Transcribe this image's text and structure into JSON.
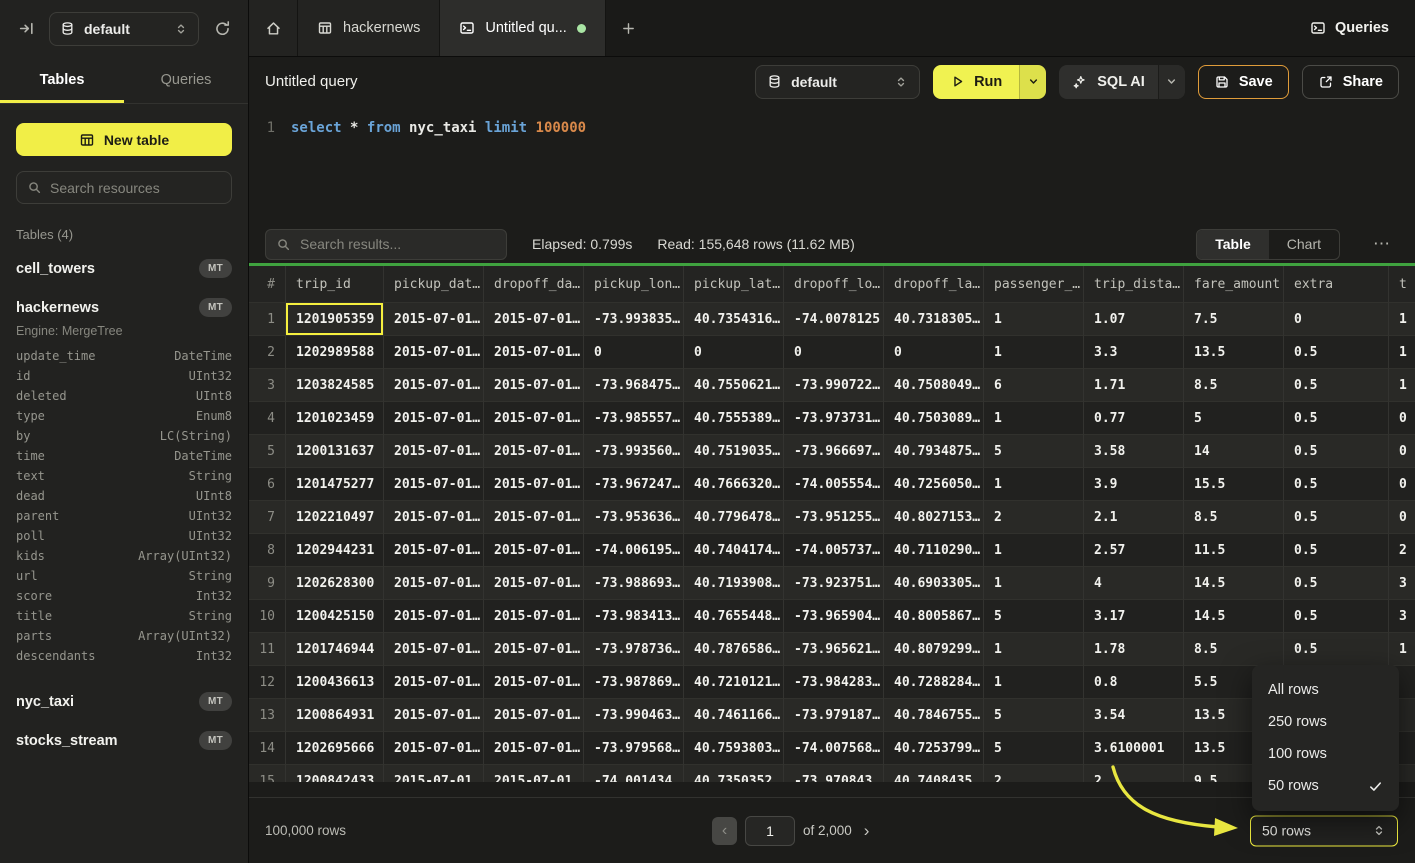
{
  "topbar": {
    "database": {
      "value": "default"
    },
    "tabs": [
      {
        "label": "hackernews"
      },
      {
        "label": "Untitled qu...",
        "active": true,
        "unsaved": true
      }
    ],
    "queries_label": "Queries"
  },
  "toolbar": {
    "title": "Untitled query",
    "database": {
      "value": "default"
    },
    "run_label": "Run",
    "sql_ai_label": "SQL AI",
    "save_label": "Save",
    "share_label": "Share"
  },
  "editor": {
    "line_number": "1",
    "tokens": [
      {
        "text": "select",
        "type": "keyword"
      },
      {
        "text": " ",
        "type": "plain"
      },
      {
        "text": "*",
        "type": "plain"
      },
      {
        "text": " ",
        "type": "plain"
      },
      {
        "text": "from",
        "type": "keyword"
      },
      {
        "text": " ",
        "type": "plain"
      },
      {
        "text": "nyc_taxi",
        "type": "identifier"
      },
      {
        "text": " ",
        "type": "plain"
      },
      {
        "text": "limit",
        "type": "keyword"
      },
      {
        "text": " ",
        "type": "plain"
      },
      {
        "text": "100000",
        "type": "number"
      }
    ]
  },
  "sidebar": {
    "tabs": [
      {
        "label": "Tables",
        "active": true
      },
      {
        "label": "Queries",
        "active": false
      }
    ],
    "new_table_label": "New table",
    "search_placeholder": "Search resources",
    "section_label": "Tables (4)",
    "tables": [
      {
        "name": "cell_towers",
        "badge": "MT"
      },
      {
        "name": "hackernews",
        "badge": "MT",
        "engine": "Engine: MergeTree",
        "columns": [
          {
            "name": "update_time",
            "type": "DateTime"
          },
          {
            "name": "id",
            "type": "UInt32"
          },
          {
            "name": "deleted",
            "type": "UInt8"
          },
          {
            "name": "type",
            "type": "Enum8"
          },
          {
            "name": "by",
            "type": "LC(String)"
          },
          {
            "name": "time",
            "type": "DateTime"
          },
          {
            "name": "text",
            "type": "String"
          },
          {
            "name": "dead",
            "type": "UInt8"
          },
          {
            "name": "parent",
            "type": "UInt32"
          },
          {
            "name": "poll",
            "type": "UInt32"
          },
          {
            "name": "kids",
            "type": "Array(UInt32)"
          },
          {
            "name": "url",
            "type": "String"
          },
          {
            "name": "score",
            "type": "Int32"
          },
          {
            "name": "title",
            "type": "String"
          },
          {
            "name": "parts",
            "type": "Array(UInt32)"
          },
          {
            "name": "descendants",
            "type": "Int32"
          }
        ]
      },
      {
        "name": "nyc_taxi",
        "badge": "MT"
      },
      {
        "name": "stocks_stream",
        "badge": "MT"
      }
    ]
  },
  "results": {
    "search_placeholder": "Search results...",
    "elapsed": "Elapsed: 0.799s",
    "read": "Read: 155,648 rows (11.62 MB)",
    "view_toggle": [
      "Table",
      "Chart"
    ],
    "more_label": "⋯"
  },
  "table": {
    "headers": [
      "#",
      "trip_id",
      "pickup_dat…",
      "dropoff_da…",
      "pickup_lon…",
      "pickup_lat…",
      "dropoff_lo…",
      "dropoff_la…",
      "passenger_…",
      "trip_dista…",
      "fare_amount",
      "extra",
      "t"
    ],
    "rows": [
      [
        "1",
        "1201905359",
        "2015-07-01…",
        "2015-07-01…",
        "-73.993835…",
        "40.7354316…",
        "-74.0078125",
        "40.7318305…",
        "1",
        "1.07",
        "7.5",
        "0",
        "1"
      ],
      [
        "2",
        "1202989588",
        "2015-07-01…",
        "2015-07-01…",
        "0",
        "0",
        "0",
        "0",
        "1",
        "3.3",
        "13.5",
        "0.5",
        "1"
      ],
      [
        "3",
        "1203824585",
        "2015-07-01…",
        "2015-07-01…",
        "-73.968475…",
        "40.7550621…",
        "-73.990722…",
        "40.7508049…",
        "6",
        "1.71",
        "8.5",
        "0.5",
        "1"
      ],
      [
        "4",
        "1201023459",
        "2015-07-01…",
        "2015-07-01…",
        "-73.985557…",
        "40.7555389…",
        "-73.973731…",
        "40.7503089…",
        "1",
        "0.77",
        "5",
        "0.5",
        "0"
      ],
      [
        "5",
        "1200131637",
        "2015-07-01…",
        "2015-07-01…",
        "-73.993560…",
        "40.7519035…",
        "-73.966697…",
        "40.7934875…",
        "5",
        "3.58",
        "14",
        "0.5",
        "0"
      ],
      [
        "6",
        "1201475277",
        "2015-07-01…",
        "2015-07-01…",
        "-73.967247…",
        "40.7666320…",
        "-74.005554…",
        "40.7256050…",
        "1",
        "3.9",
        "15.5",
        "0.5",
        "0"
      ],
      [
        "7",
        "1202210497",
        "2015-07-01…",
        "2015-07-01…",
        "-73.953636…",
        "40.7796478…",
        "-73.951255…",
        "40.8027153…",
        "2",
        "2.1",
        "8.5",
        "0.5",
        "0"
      ],
      [
        "8",
        "1202944231",
        "2015-07-01…",
        "2015-07-01…",
        "-74.006195…",
        "40.7404174…",
        "-74.005737…",
        "40.7110290…",
        "1",
        "2.57",
        "11.5",
        "0.5",
        "2"
      ],
      [
        "9",
        "1202628300",
        "2015-07-01…",
        "2015-07-01…",
        "-73.988693…",
        "40.7193908…",
        "-73.923751…",
        "40.6903305…",
        "1",
        "4",
        "14.5",
        "0.5",
        "3"
      ],
      [
        "10",
        "1200425150",
        "2015-07-01…",
        "2015-07-01…",
        "-73.983413…",
        "40.7655448…",
        "-73.965904…",
        "40.8005867…",
        "5",
        "3.17",
        "14.5",
        "0.5",
        "3"
      ],
      [
        "11",
        "1201746944",
        "2015-07-01…",
        "2015-07-01…",
        "-73.978736…",
        "40.7876586…",
        "-73.965621…",
        "40.8079299…",
        "1",
        "1.78",
        "8.5",
        "0.5",
        "1"
      ],
      [
        "12",
        "1200436613",
        "2015-07-01…",
        "2015-07-01…",
        "-73.987869…",
        "40.7210121…",
        "-73.984283…",
        "40.7288284…",
        "1",
        "0.8",
        "5.5",
        "",
        ""
      ],
      [
        "13",
        "1200864931",
        "2015-07-01…",
        "2015-07-01…",
        "-73.990463…",
        "40.7461166…",
        "-73.979187…",
        "40.7846755…",
        "5",
        "3.54",
        "13.5",
        "",
        ""
      ],
      [
        "14",
        "1202695666",
        "2015-07-01…",
        "2015-07-01…",
        "-73.979568…",
        "40.7593803…",
        "-74.007568…",
        "40.7253799…",
        "5",
        "3.6100001",
        "13.5",
        "",
        ""
      ],
      [
        "15",
        "1200842433",
        "2015-07-01…",
        "2015-07-01…",
        "-74.001434",
        "40.7350352",
        "-73.970843",
        "40.7408435",
        "2",
        "2",
        "9.5",
        "",
        ""
      ]
    ],
    "selected_cell": {
      "row": 0,
      "col": 1
    }
  },
  "footer": {
    "row_count": "100,000 rows",
    "prev_label": "‹",
    "page_value": "1",
    "of_label": "of 2,000",
    "next_label": "›",
    "page_size_value": "50 rows"
  },
  "rows_menu": {
    "items": [
      {
        "label": "All rows",
        "checked": false
      },
      {
        "label": "250 rows",
        "checked": false
      },
      {
        "label": "100 rows",
        "checked": false
      },
      {
        "label": "50 rows",
        "checked": true
      }
    ]
  },
  "colors": {
    "accent_yellow": "#f1ee47",
    "results_bar_green": "#3fa33f",
    "unsaved_dot_green": "#a9e5a4",
    "save_border_orange": "#e09c3a",
    "annotation_arrow": "#e8e640"
  }
}
